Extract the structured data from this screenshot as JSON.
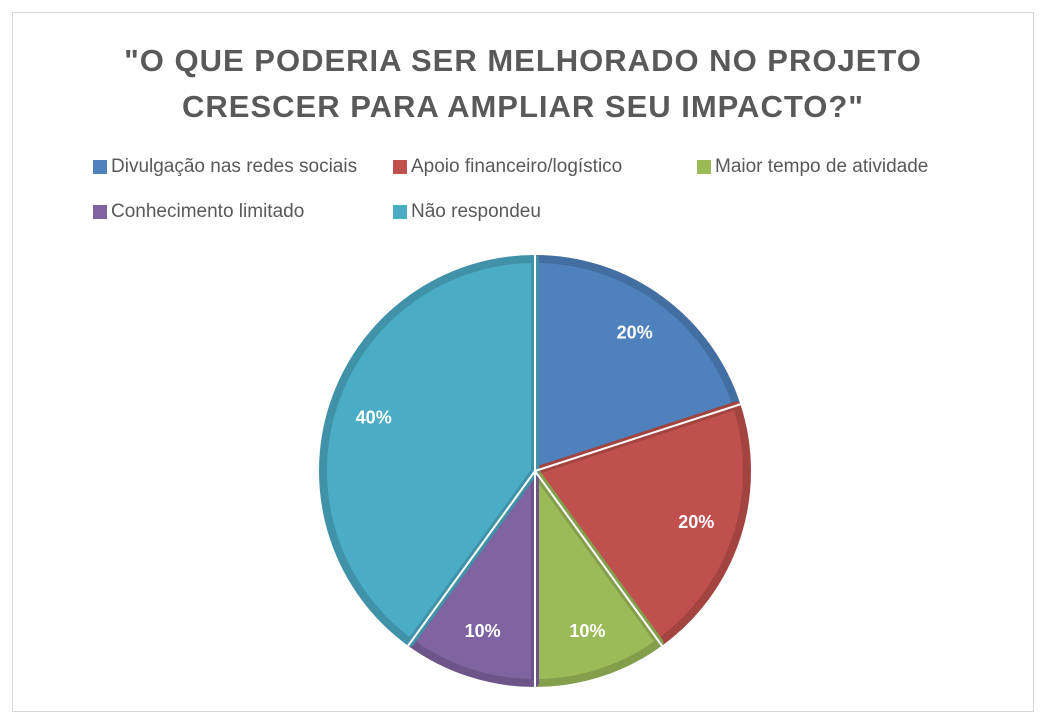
{
  "chart_data": {
    "type": "pie",
    "title": "\"O QUE PODERIA SER MELHORADO NO PROJETO CRESCER PARA AMPLIAR SEU IMPACTO?\"",
    "categories": [
      "Divulgação nas redes sociais",
      "Apoio financeiro/logístico",
      "Maior tempo de atividade",
      "Conhecimento limitado",
      "Não respondeu"
    ],
    "values": [
      20,
      20,
      10,
      10,
      40
    ],
    "value_labels": [
      "20%",
      "20%",
      "10%",
      "10%",
      "40%"
    ],
    "colors": [
      "#4f81bd",
      "#c0504d",
      "#9bbb59",
      "#8064a2",
      "#4bacc6"
    ],
    "legend": "top"
  }
}
